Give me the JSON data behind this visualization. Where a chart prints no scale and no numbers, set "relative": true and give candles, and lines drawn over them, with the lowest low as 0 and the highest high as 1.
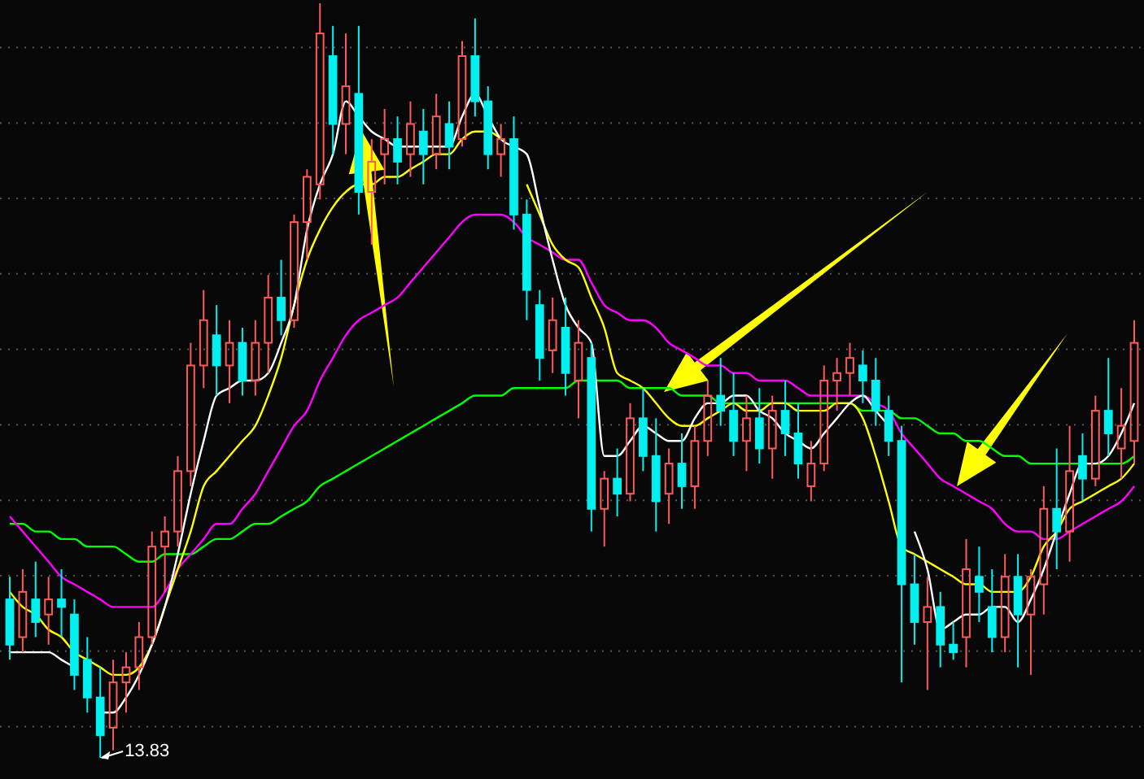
{
  "chart_data": {
    "type": "candlestick",
    "relative": true,
    "grid": true,
    "categories": [
      null,
      null,
      null,
      null,
      null,
      null,
      null,
      null,
      null,
      null,
      null,
      null,
      null,
      null,
      null,
      null,
      null,
      null,
      null,
      null,
      null,
      null,
      null,
      null,
      null,
      null,
      null,
      null,
      null,
      null,
      null,
      null,
      null,
      null,
      null,
      null,
      null,
      null,
      null,
      null,
      null,
      null,
      null,
      null,
      null,
      null,
      null,
      null,
      null,
      null,
      null,
      null,
      null,
      null,
      null,
      null,
      null,
      null,
      null,
      null,
      null,
      null,
      null,
      null,
      null,
      null,
      null,
      null,
      null,
      null,
      null,
      null,
      null,
      null,
      null,
      null,
      null,
      null,
      null,
      null,
      null,
      null,
      null,
      null,
      null,
      null,
      null,
      null
    ],
    "ohlc": [
      [
        0.21,
        0.24,
        0.13,
        0.15
      ],
      [
        0.16,
        0.25,
        0.14,
        0.22
      ],
      [
        0.21,
        0.26,
        0.16,
        0.18
      ],
      [
        0.19,
        0.24,
        0.15,
        0.21
      ],
      [
        0.21,
        0.25,
        0.16,
        0.2
      ],
      [
        0.19,
        0.21,
        0.09,
        0.11
      ],
      [
        0.13,
        0.16,
        0.06,
        0.08
      ],
      [
        0.08,
        0.12,
        0,
        0.03
      ],
      [
        0.04,
        0.13,
        0.01,
        0.1
      ],
      [
        0.1,
        0.14,
        0.06,
        0.12
      ],
      [
        0.12,
        0.18,
        0.09,
        0.16
      ],
      [
        0.16,
        0.3,
        0.15,
        0.28
      ],
      [
        0.28,
        0.32,
        0.22,
        0.3
      ],
      [
        0.3,
        0.4,
        0.28,
        0.38
      ],
      [
        0.38,
        0.55,
        0.36,
        0.52
      ],
      [
        0.52,
        0.62,
        0.49,
        0.58
      ],
      [
        0.56,
        0.6,
        0.48,
        0.52
      ],
      [
        0.52,
        0.58,
        0.47,
        0.55
      ],
      [
        0.55,
        0.57,
        0.48,
        0.5
      ],
      [
        0.5,
        0.58,
        0.48,
        0.55
      ],
      [
        0.55,
        0.64,
        0.51,
        0.61
      ],
      [
        0.61,
        0.66,
        0.56,
        0.58
      ],
      [
        0.58,
        0.72,
        0.57,
        0.71
      ],
      [
        0.71,
        0.78,
        0.66,
        0.77
      ],
      [
        0.76,
        1,
        0.74,
        0.96
      ],
      [
        0.93,
        0.97,
        0.8,
        0.84
      ],
      [
        0.84,
        0.96,
        0.8,
        0.89
      ],
      [
        0.88,
        0.97,
        0.72,
        0.75
      ],
      [
        0.75,
        0.82,
        0.68,
        0.79
      ],
      [
        0.8,
        0.86,
        0.76,
        0.82
      ],
      [
        0.82,
        0.85,
        0.76,
        0.79
      ],
      [
        0.8,
        0.87,
        0.77,
        0.84
      ],
      [
        0.83,
        0.86,
        0.76,
        0.8
      ],
      [
        0.8,
        0.88,
        0.78,
        0.85
      ],
      [
        0.84,
        0.87,
        0.78,
        0.81
      ],
      [
        0.82,
        0.95,
        0.81,
        0.93
      ],
      [
        0.93,
        0.98,
        0.85,
        0.87
      ],
      [
        0.87,
        0.89,
        0.78,
        0.8
      ],
      [
        0.8,
        0.84,
        0.77,
        0.82
      ],
      [
        0.82,
        0.85,
        0.7,
        0.72
      ],
      [
        0.72,
        0.74,
        0.58,
        0.62
      ],
      [
        0.6,
        0.62,
        0.5,
        0.53
      ],
      [
        0.54,
        0.61,
        0.51,
        0.58
      ],
      [
        0.57,
        0.61,
        0.48,
        0.51
      ],
      [
        0.5,
        0.58,
        0.45,
        0.55
      ],
      [
        0.53,
        0.55,
        0.3,
        0.33
      ],
      [
        0.33,
        0.38,
        0.28,
        0.37
      ],
      [
        0.37,
        0.41,
        0.32,
        0.35
      ],
      [
        0.35,
        0.47,
        0.34,
        0.45
      ],
      [
        0.45,
        0.49,
        0.38,
        0.4
      ],
      [
        0.4,
        0.45,
        0.3,
        0.34
      ],
      [
        0.35,
        0.41,
        0.31,
        0.39
      ],
      [
        0.39,
        0.43,
        0.33,
        0.36
      ],
      [
        0.36,
        0.44,
        0.33,
        0.42
      ],
      [
        0.42,
        0.5,
        0.4,
        0.48
      ],
      [
        0.48,
        0.53,
        0.44,
        0.46
      ],
      [
        0.46,
        0.51,
        0.4,
        0.42
      ],
      [
        0.42,
        0.48,
        0.38,
        0.45
      ],
      [
        0.45,
        0.49,
        0.39,
        0.41
      ],
      [
        0.41,
        0.48,
        0.37,
        0.46
      ],
      [
        0.46,
        0.5,
        0.4,
        0.43
      ],
      [
        0.43,
        0.47,
        0.37,
        0.39
      ],
      [
        0.36,
        0.42,
        0.34,
        0.39
      ],
      [
        0.39,
        0.52,
        0.38,
        0.5
      ],
      [
        0.5,
        0.53,
        0.46,
        0.51
      ],
      [
        0.51,
        0.55,
        0.48,
        0.53
      ],
      [
        0.52,
        0.54,
        0.47,
        0.5
      ],
      [
        0.5,
        0.53,
        0.44,
        0.46
      ],
      [
        0.46,
        0.48,
        0.4,
        0.42
      ],
      [
        0.42,
        0.44,
        0.1,
        0.23
      ],
      [
        0.23,
        0.27,
        0.15,
        0.18
      ],
      [
        0.18,
        0.24,
        0.09,
        0.2
      ],
      [
        0.2,
        0.22,
        0.12,
        0.15
      ],
      [
        0.15,
        0.18,
        0.13,
        0.14
      ],
      [
        0.16,
        0.29,
        0.12,
        0.25
      ],
      [
        0.24,
        0.28,
        0.18,
        0.22
      ],
      [
        0.2,
        0.25,
        0.14,
        0.16
      ],
      [
        0.16,
        0.27,
        0.14,
        0.24
      ],
      [
        0.24,
        0.27,
        0.12,
        0.19
      ],
      [
        0.19,
        0.25,
        0.11,
        0.24
      ],
      [
        0.23,
        0.36,
        0.19,
        0.33
      ],
      [
        0.33,
        0.41,
        0.25,
        0.3
      ],
      [
        0.3,
        0.44,
        0.26,
        0.38
      ],
      [
        0.4,
        0.43,
        0.34,
        0.37
      ],
      [
        0.37,
        0.48,
        0.36,
        0.46
      ],
      [
        0.46,
        0.53,
        0.4,
        0.43
      ],
      [
        0.41,
        0.49,
        0.37,
        0.44
      ],
      [
        0.42,
        0.58,
        0.39,
        0.55
      ]
    ],
    "series": [
      {
        "type": "line",
        "color": "#00ff00",
        "values": [
          0.31,
          0.31,
          0.3,
          0.3,
          0.29,
          0.29,
          0.28,
          0.28,
          0.28,
          0.27,
          0.26,
          0.26,
          0.27,
          0.27,
          0.27,
          0.28,
          0.29,
          0.29,
          0.3,
          0.31,
          0.31,
          0.32,
          0.33,
          0.34,
          0.36,
          0.37,
          0.38,
          0.39,
          0.4,
          0.41,
          0.42,
          0.43,
          0.44,
          0.45,
          0.46,
          0.47,
          0.48,
          0.48,
          0.48,
          0.49,
          0.49,
          0.49,
          0.49,
          0.49,
          0.5,
          0.5,
          0.5,
          0.5,
          0.49,
          0.49,
          0.49,
          0.49,
          0.48,
          0.48,
          0.48,
          0.47,
          0.47,
          0.47,
          0.47,
          0.47,
          0.47,
          0.47,
          0.47,
          0.47,
          0.47,
          0.47,
          0.46,
          0.46,
          0.46,
          0.45,
          0.45,
          0.44,
          0.43,
          0.43,
          0.42,
          0.42,
          0.41,
          0.4,
          0.4,
          0.39,
          0.39,
          0.39,
          0.39,
          0.39,
          0.39,
          0.39,
          0.39,
          0.4
        ]
      },
      {
        "type": "line",
        "color": "#ff00ff",
        "values": [
          0.32,
          0.3,
          0.28,
          0.26,
          0.24,
          0.23,
          0.22,
          0.21,
          0.2,
          0.2,
          0.2,
          0.2,
          0.22,
          0.25,
          0.27,
          0.29,
          0.31,
          0.31,
          0.33,
          0.35,
          0.38,
          0.41,
          0.44,
          0.46,
          0.5,
          0.53,
          0.56,
          0.58,
          0.59,
          0.6,
          0.61,
          0.63,
          0.65,
          0.67,
          0.69,
          0.71,
          0.72,
          0.72,
          0.72,
          0.71,
          0.69,
          0.68,
          0.67,
          0.66,
          0.66,
          0.63,
          0.6,
          0.59,
          0.58,
          0.58,
          0.57,
          0.55,
          0.54,
          0.53,
          0.52,
          0.52,
          0.51,
          0.51,
          0.5,
          0.5,
          0.5,
          0.49,
          0.48,
          0.48,
          0.48,
          0.48,
          0.48,
          0.47,
          0.46,
          0.43,
          0.41,
          0.39,
          0.37,
          0.36,
          0.35,
          0.34,
          0.33,
          0.31,
          0.3,
          0.3,
          0.29,
          0.29,
          0.3,
          0.31,
          0.32,
          0.33,
          0.34,
          0.36
        ]
      },
      {
        "type": "line",
        "color": "#ffff00",
        "values": [
          0.22,
          0.2,
          0.19,
          0.17,
          0.16,
          0.14,
          0.13,
          0.12,
          0.11,
          0.11,
          0.12,
          0.15,
          0.2,
          0.25,
          0.3,
          0.36,
          0.38,
          0.4,
          0.42,
          0.44,
          0.48,
          0.53,
          0.6,
          0.66,
          0.7,
          0.73,
          0.75,
          0.76,
          0.76,
          0.77,
          0.77,
          0.78,
          0.79,
          0.8,
          0.8,
          0.82,
          0.83,
          0.83,
          0.82,
          null,
          0.76,
          0.72,
          0.68,
          0.66,
          0.65,
          0.61,
          0.57,
          0.51,
          0.5,
          0.49,
          0.47,
          0.45,
          0.44,
          0.44,
          0.45,
          0.46,
          0.47,
          0.46,
          0.46,
          0.47,
          0.47,
          0.46,
          0.46,
          0.46,
          0.47,
          0.47,
          0.45,
          0.4,
          0.34,
          0.28,
          0.27,
          0.26,
          0.25,
          0.24,
          0.23,
          0.23,
          0.22,
          0.22,
          0.22,
          0.24,
          0.28,
          0.3,
          0.33,
          0.34,
          0.35,
          0.36,
          0.37,
          0.39
        ]
      },
      {
        "type": "line",
        "color": "#ffffff",
        "values": [
          0.14,
          0.14,
          0.14,
          0.14,
          0.13,
          0.12,
          null,
          0.06,
          0.06,
          0.08,
          0.11,
          0.15,
          0.2,
          0.27,
          0.35,
          0.42,
          0.48,
          0.49,
          0.5,
          0.5,
          0.51,
          0.55,
          0.6,
          0.7,
          0.76,
          0.8,
          0.87,
          0.85,
          0.83,
          0.82,
          0.81,
          0.81,
          0.81,
          0.81,
          0.81,
          0.85,
          0.88,
          0.85,
          0.82,
          0.81,
          0.8,
          0.73,
          0.66,
          0.6,
          0.57,
          0.55,
          0.4,
          0.4,
          0.42,
          0.44,
          0.43,
          0.42,
          0.42,
          0.45,
          0.47,
          0.47,
          0.48,
          0.48,
          0.46,
          0.45,
          0.43,
          0.42,
          0.41,
          0.43,
          0.45,
          0.47,
          0.48,
          0.46,
          0.44,
          null,
          0.3,
          0.25,
          0.17,
          0.18,
          0.19,
          0.19,
          0.2,
          0.2,
          0.18,
          0.21,
          0.25,
          0.3,
          0.35,
          0.39,
          0.39,
          0.4,
          0.43,
          0.47
        ]
      }
    ],
    "annotations": [
      "13.83"
    ]
  }
}
